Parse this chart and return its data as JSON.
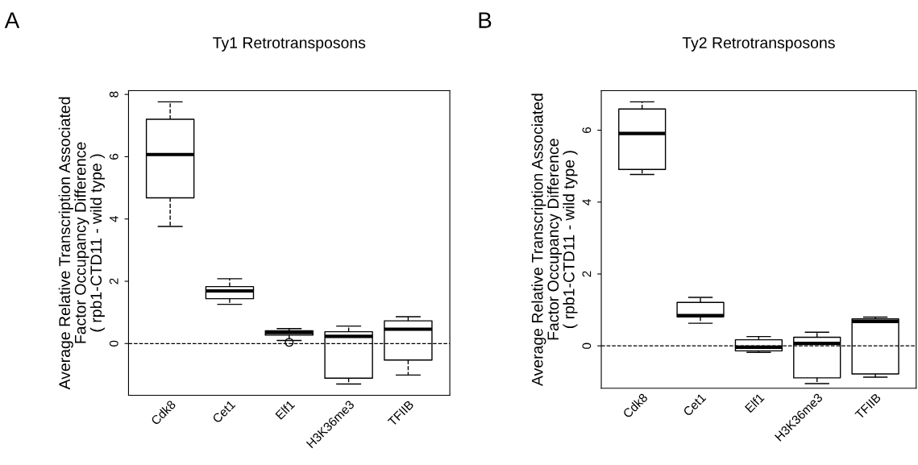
{
  "chart_data": [
    {
      "type": "box",
      "title": "Ty1 Retrotransposons",
      "ylabel": "Average Relative Transcription Associated\nFactor Occupancy Difference\n( rpb1-CTD11 - wild type )",
      "annotations": [
        "A"
      ],
      "categories": [
        "Cdk8",
        "Cet1",
        "Elf1",
        "H3K36me3",
        "TFIIB"
      ],
      "boxes": [
        {
          "low": 3.76,
          "q1": 4.68,
          "median": 6.07,
          "q3": 7.2,
          "high": 7.76
        },
        {
          "low": 1.26,
          "q1": 1.44,
          "median": 1.69,
          "q3": 1.83,
          "high": 2.08
        },
        {
          "low": 0.1,
          "q1": 0.27,
          "median": 0.35,
          "q3": 0.41,
          "high": 0.48,
          "outliers": [
            0.04
          ]
        },
        {
          "low": -1.3,
          "q1": -1.11,
          "median": 0.23,
          "q3": 0.38,
          "high": 0.56
        },
        {
          "low": -1.01,
          "q1": -0.53,
          "median": 0.46,
          "q3": 0.73,
          "high": 0.86
        }
      ],
      "ylim": [
        -1.66,
        8.12
      ],
      "yticks": [
        0,
        2,
        4,
        6,
        8
      ],
      "line_style": "dashed",
      "grid": false,
      "ref_lines": [
        {
          "axis": "y",
          "value": 0,
          "line_style": "dashed",
          "color": "#000000"
        }
      ]
    },
    {
      "type": "box",
      "title": "Ty2 Retrotransposons",
      "ylabel": "Average Relative Transcription Associated\nFactor Occupancy Difference\n( rpb1-CTD11 - wild type )",
      "annotations": [
        "B"
      ],
      "categories": [
        "Cdk8",
        "Cet1",
        "Elf1",
        "H3K36me3",
        "TFIIB"
      ],
      "boxes": [
        {
          "low": 4.77,
          "q1": 4.91,
          "median": 5.91,
          "q3": 6.59,
          "high": 6.79
        },
        {
          "low": 0.63,
          "q1": 0.81,
          "median": 0.84,
          "q3": 1.21,
          "high": 1.35
        },
        {
          "low": -0.18,
          "q1": -0.14,
          "median": -0.04,
          "q3": 0.17,
          "high": 0.26
        },
        {
          "low": -1.05,
          "q1": -0.89,
          "median": 0.07,
          "q3": 0.24,
          "high": 0.38
        },
        {
          "low": -0.87,
          "q1": -0.78,
          "median": 0.68,
          "q3": 0.75,
          "high": 0.8
        }
      ],
      "ylim": [
        -1.18,
        7.1
      ],
      "yticks": [
        0,
        2,
        4,
        6
      ],
      "line_style": "dashed",
      "grid": false,
      "ref_lines": [
        {
          "axis": "y",
          "value": 0,
          "line_style": "dashed",
          "color": "#000000"
        }
      ]
    }
  ]
}
